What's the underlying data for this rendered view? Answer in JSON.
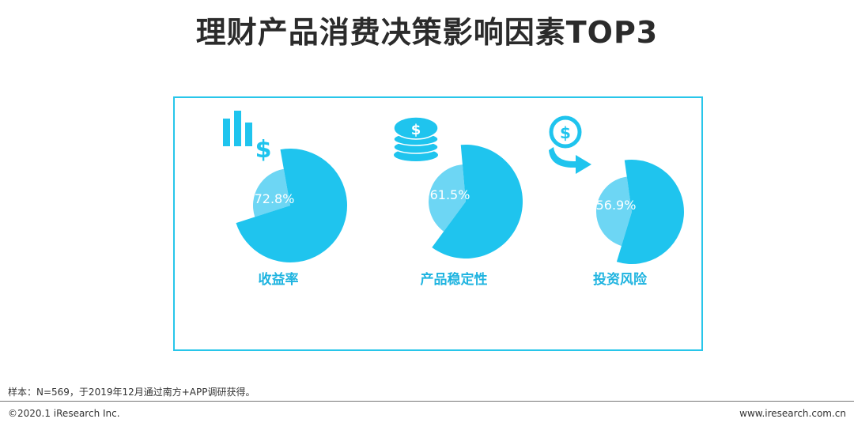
{
  "page": {
    "title": "理财产品消费决策影响因素TOP3",
    "footnote": "样本：N=569，于2019年12月通过南方+APP调研获得。",
    "copyright": "©2020.1 iResearch Inc.",
    "website": "www.iresearch.com.cn"
  },
  "chart_data": {
    "type": "pie",
    "title": "理财产品消费决策影响因素TOP3",
    "colors": {
      "primary": "#1fc4ee",
      "secondary": "#6dd6f4",
      "frame": "#28c6ea"
    },
    "items": [
      {
        "label": "收益率",
        "value": 72.8,
        "display": "72.8%",
        "icon": "bar-chart-dollar-icon"
      },
      {
        "label": "产品稳定性",
        "value": 61.5,
        "display": "61.5%",
        "icon": "coin-stack-icon"
      },
      {
        "label": "投资风险",
        "value": 56.9,
        "display": "56.9%",
        "icon": "dollar-arrow-icon"
      }
    ]
  }
}
